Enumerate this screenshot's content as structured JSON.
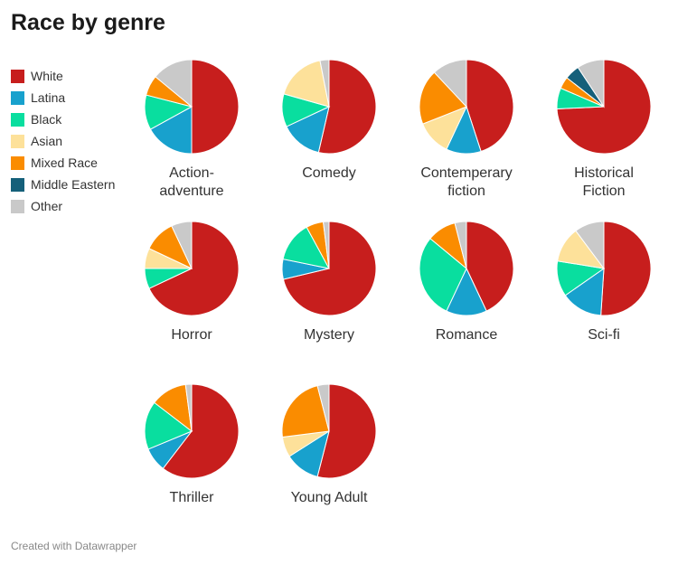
{
  "title": "Race by genre",
  "footer": "Created with Datawrapper",
  "legend": [
    {
      "label": "White",
      "color": "#c71e1d"
    },
    {
      "label": "Latina",
      "color": "#18a1cd"
    },
    {
      "label": "Black",
      "color": "#09de9f"
    },
    {
      "label": "Asian",
      "color": "#fde19a"
    },
    {
      "label": "Mixed Race",
      "color": "#fa8c00"
    },
    {
      "label": "Middle Eastern",
      "color": "#15607a"
    },
    {
      "label": "Other",
      "color": "#c9c9c9"
    }
  ],
  "chart_data": {
    "type": "pie",
    "title": "Race by genre",
    "legend_position": "left",
    "categories": [
      "White",
      "Latina",
      "Black",
      "Asian",
      "Mixed Race",
      "Middle Eastern",
      "Other"
    ],
    "colors": [
      "#c71e1d",
      "#18a1cd",
      "#09de9f",
      "#fde19a",
      "#fa8c00",
      "#15607a",
      "#c9c9c9"
    ],
    "pies": [
      {
        "name": "Action-adventure",
        "values": [
          50,
          17,
          12,
          0,
          7,
          0,
          14
        ]
      },
      {
        "name": "Comedy",
        "values": [
          52,
          14,
          11,
          17,
          0,
          0,
          3
        ]
      },
      {
        "name": "Contemperary fiction",
        "values": [
          45,
          12,
          0,
          12,
          19,
          0,
          12
        ]
      },
      {
        "name": "Historical Fiction",
        "values": [
          72,
          0,
          7,
          0,
          4,
          5,
          9
        ]
      },
      {
        "name": "Horror",
        "values": [
          68,
          0,
          7,
          7,
          11,
          0,
          7
        ]
      },
      {
        "name": "Mystery",
        "values": [
          72,
          7,
          14,
          0,
          6,
          0,
          2
        ]
      },
      {
        "name": "Romance",
        "values": [
          43,
          14,
          29,
          0,
          10,
          0,
          4
        ]
      },
      {
        "name": "Sci-fi",
        "values": [
          50,
          14,
          12,
          12,
          0,
          0,
          10
        ]
      },
      {
        "name": "Thriller",
        "values": [
          58,
          8,
          16,
          0,
          12,
          0,
          2
        ]
      },
      {
        "name": "Young Adult",
        "values": [
          54,
          12,
          0,
          7,
          23,
          0,
          4
        ]
      }
    ]
  }
}
